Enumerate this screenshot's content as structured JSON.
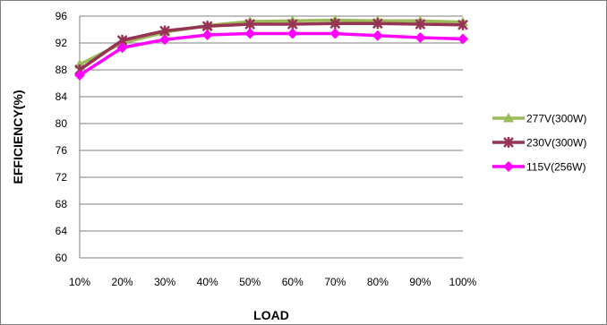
{
  "chart_data": {
    "type": "line",
    "title": "",
    "xlabel": "LOAD",
    "ylabel": "EFFICIENCY(%)",
    "categories": [
      "10%",
      "20%",
      "30%",
      "40%",
      "50%",
      "60%",
      "70%",
      "80%",
      "90%",
      "100%"
    ],
    "ylim": [
      60,
      96
    ],
    "yticks": [
      60,
      64,
      68,
      72,
      76,
      80,
      84,
      88,
      92,
      96
    ],
    "grid": "horizontal",
    "legend_position": "right",
    "series": [
      {
        "name": "277V(300W)",
        "color": "#9bbb59",
        "marker": "triangle",
        "values": [
          88.8,
          92.0,
          93.6,
          94.6,
          95.2,
          95.3,
          95.4,
          95.3,
          95.3,
          95.1
        ]
      },
      {
        "name": "230V(300W)",
        "color": "#953553",
        "marker": "star",
        "values": [
          88.0,
          92.4,
          93.8,
          94.5,
          94.8,
          94.8,
          94.9,
          94.9,
          94.8,
          94.7
        ]
      },
      {
        "name": "115V(256W)",
        "color": "#ff00ff",
        "marker": "diamond",
        "values": [
          87.2,
          91.3,
          92.5,
          93.2,
          93.4,
          93.4,
          93.4,
          93.1,
          92.8,
          92.6
        ]
      }
    ]
  }
}
